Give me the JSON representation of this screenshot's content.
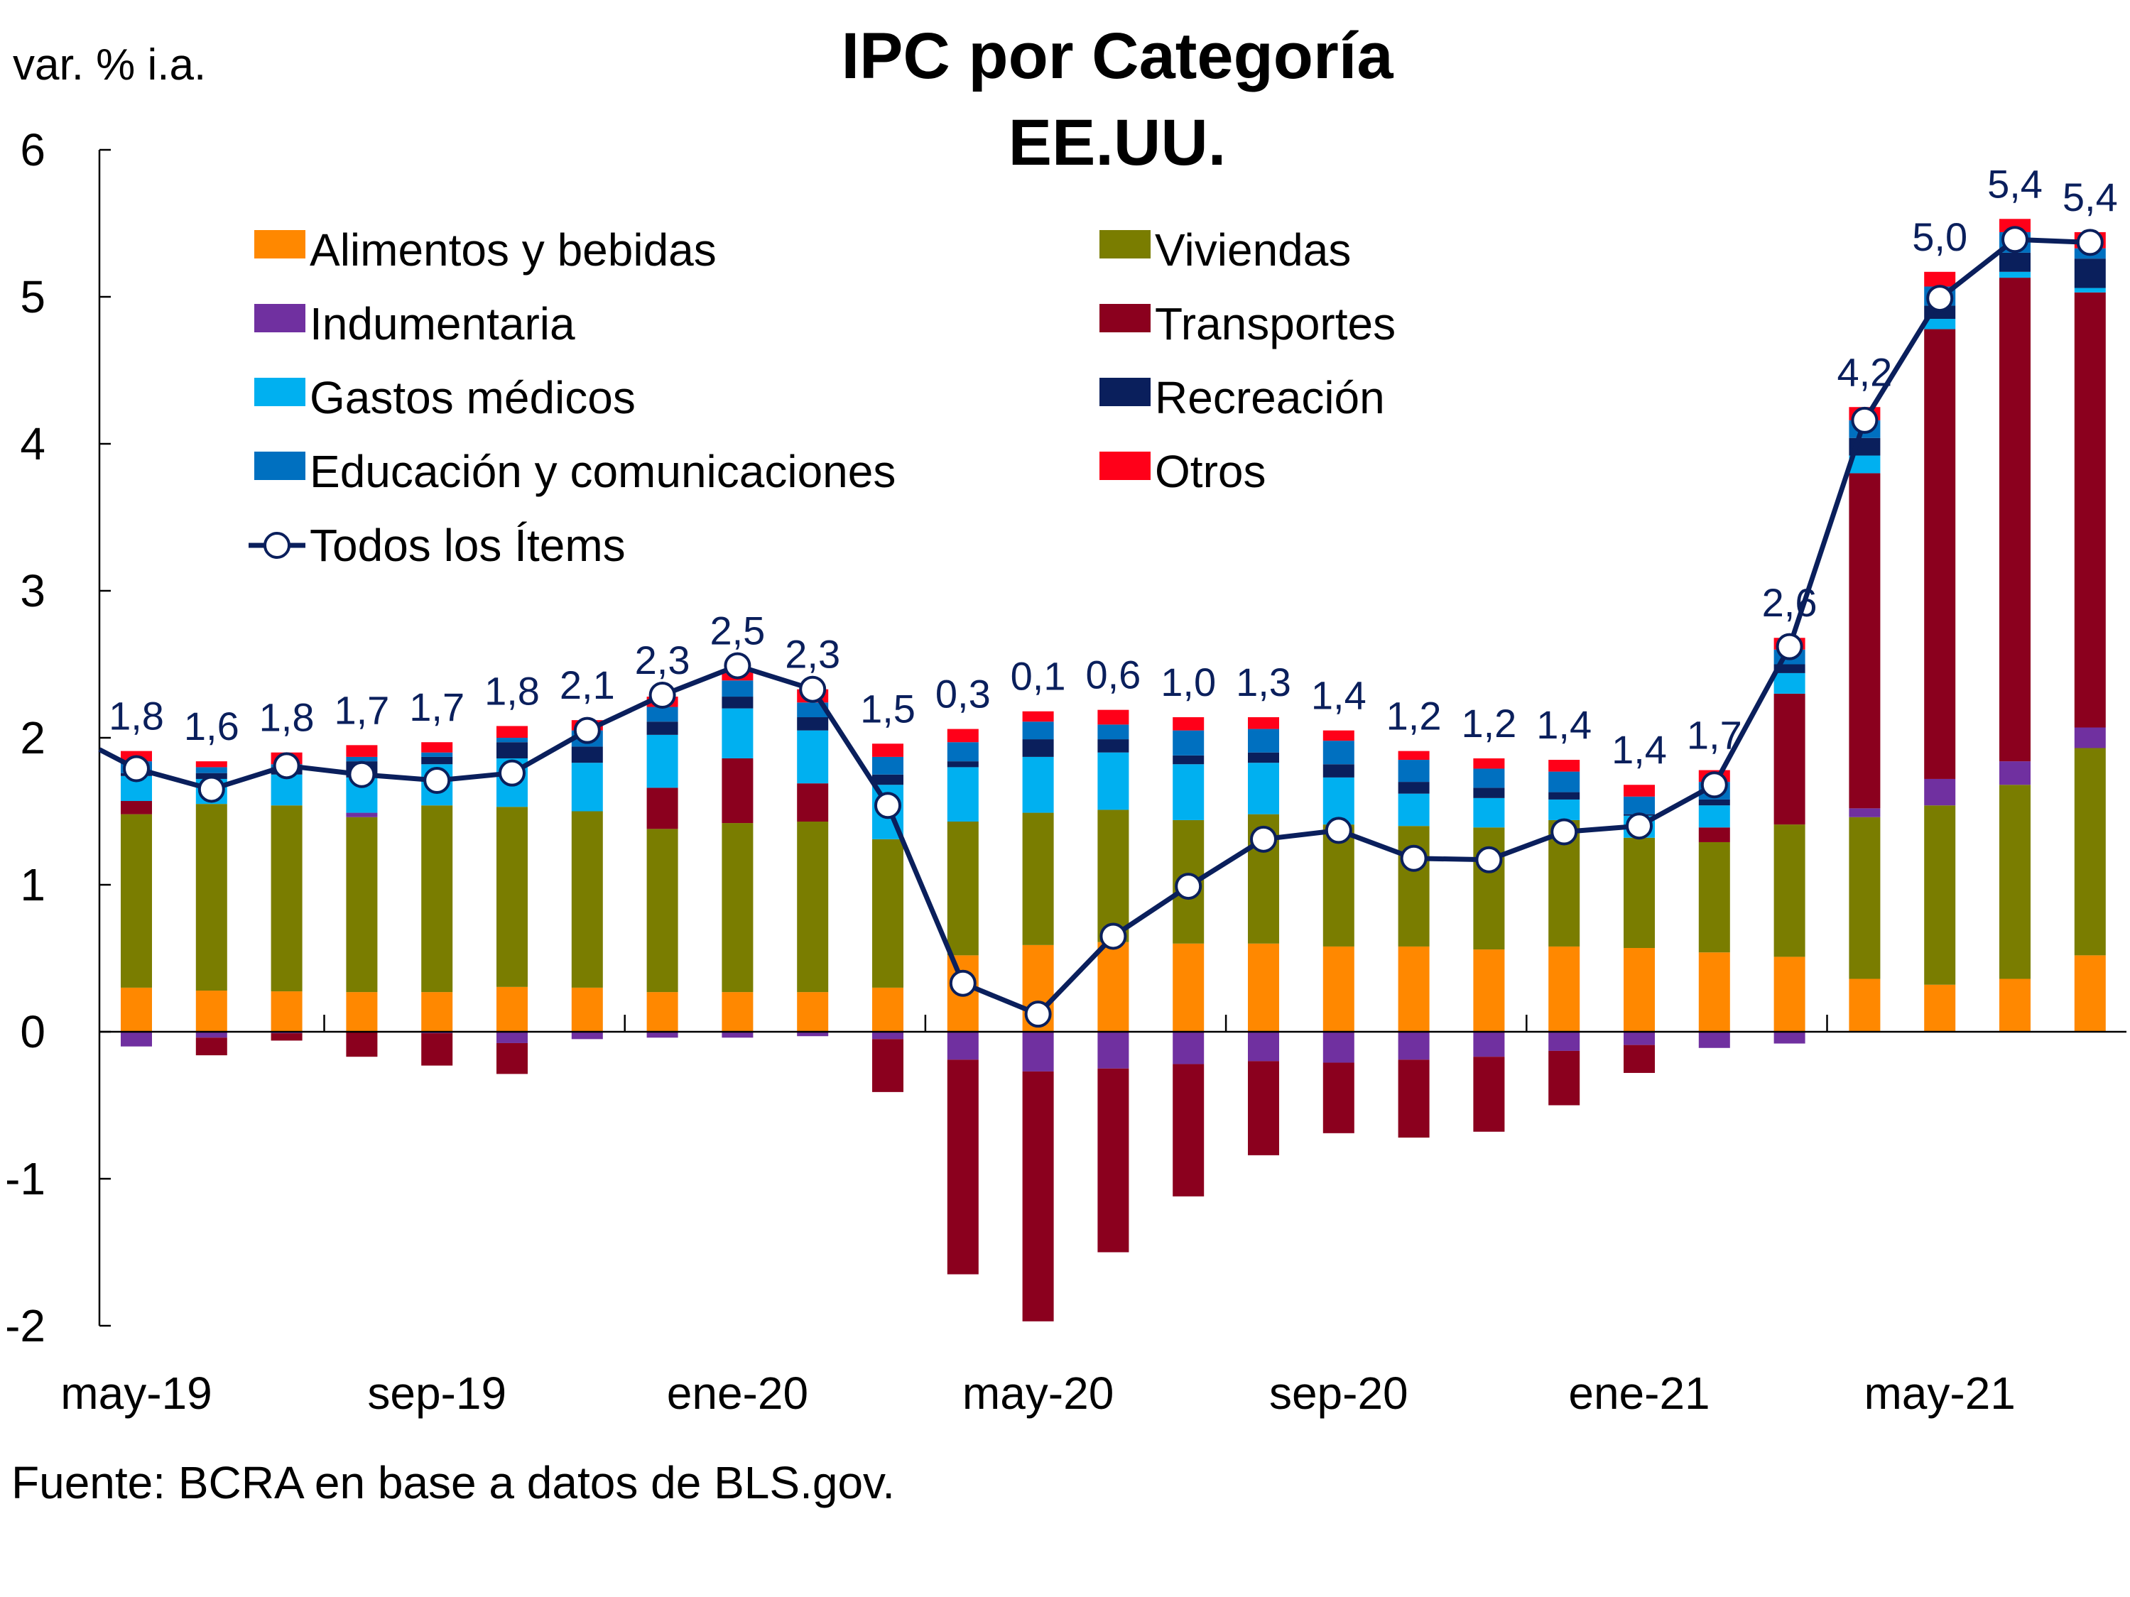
{
  "chart_data": {
    "type": "bar",
    "stacked": true,
    "title": "IPC por Categoría",
    "subtitle": "EE.UU.",
    "ylabel": "var. % i.a.",
    "xlabel": "",
    "ylim": [
      -2,
      6
    ],
    "yticks": [
      6,
      5,
      4,
      3,
      2,
      1,
      0,
      -1,
      -2
    ],
    "ytick_labels": [
      "6",
      "5",
      "4",
      "3",
      "2",
      "1",
      "0",
      "-1",
      "-2"
    ],
    "grid": false,
    "legend_position": "top-left",
    "source": "Fuente: BCRA en base a datos de BLS.gov.",
    "categories": [
      "may-19",
      "jun-19",
      "jul-19",
      "ago-19",
      "sep-19",
      "oct-19",
      "nov-19",
      "dic-19",
      "ene-20",
      "feb-20",
      "mar-20",
      "abr-20",
      "may-20",
      "jun-20",
      "jul-20",
      "ago-20",
      "sep-20",
      "oct-20",
      "nov-20",
      "dic-20",
      "ene-21",
      "feb-21",
      "mar-21",
      "abr-21",
      "may-21",
      "jun-21",
      "jul-21"
    ],
    "xtick_labels": [
      {
        "index": 0,
        "label": "may-19"
      },
      {
        "index": 4,
        "label": "sep-19"
      },
      {
        "index": 8,
        "label": "ene-20"
      },
      {
        "index": 12,
        "label": "may-20"
      },
      {
        "index": 16,
        "label": "sep-20"
      },
      {
        "index": 20,
        "label": "ene-21"
      },
      {
        "index": 24,
        "label": "may-21"
      }
    ],
    "series": [
      {
        "name": "Alimentos y bebidas",
        "key": "alimentos",
        "color": "#ff8800",
        "values": [
          0.3,
          0.28,
          0.275,
          0.27,
          0.27,
          0.305,
          0.3,
          0.27,
          0.27,
          0.27,
          0.3,
          0.52,
          0.59,
          0.61,
          0.6,
          0.6,
          0.58,
          0.58,
          0.56,
          0.58,
          0.57,
          0.54,
          0.51,
          0.36,
          0.32,
          0.36,
          0.52
        ]
      },
      {
        "name": "Viviendas",
        "key": "viviendas",
        "color": "#7a7d00",
        "values": [
          1.18,
          1.27,
          1.265,
          1.19,
          1.27,
          1.225,
          1.2,
          1.11,
          1.15,
          1.16,
          1.01,
          0.91,
          0.9,
          0.9,
          0.84,
          0.88,
          0.83,
          0.82,
          0.83,
          0.86,
          0.75,
          0.75,
          0.9,
          1.1,
          1.22,
          1.32,
          1.41
        ]
      },
      {
        "name": "Indumentaria",
        "key": "indumentaria",
        "color": "#7030a0",
        "values": [
          -0.1,
          -0.04,
          -0.01,
          0.03,
          -0.01,
          -0.077,
          -0.05,
          -0.04,
          -0.04,
          -0.03,
          -0.05,
          -0.19,
          -0.27,
          -0.25,
          -0.22,
          -0.2,
          -0.21,
          -0.19,
          -0.17,
          -0.13,
          -0.09,
          -0.11,
          -0.08,
          0.06,
          0.18,
          0.16,
          0.14
        ]
      },
      {
        "name": "Transportes",
        "key": "transportes",
        "color": "#8b001e",
        "values": [
          0.09,
          -0.12,
          -0.05,
          -0.17,
          -0.22,
          -0.21,
          0.0,
          0.28,
          0.44,
          0.26,
          -0.36,
          -1.46,
          -1.7,
          -1.25,
          -0.9,
          -0.64,
          -0.48,
          -0.53,
          -0.51,
          -0.37,
          -0.19,
          0.1,
          0.89,
          2.28,
          3.06,
          3.29,
          2.96
        ]
      },
      {
        "name": "Gastos médicos",
        "key": "medicos",
        "color": "#00b0f0",
        "values": [
          0.17,
          0.17,
          0.21,
          0.24,
          0.28,
          0.33,
          0.33,
          0.36,
          0.34,
          0.36,
          0.37,
          0.37,
          0.38,
          0.39,
          0.38,
          0.35,
          0.32,
          0.22,
          0.2,
          0.14,
          0.15,
          0.15,
          0.14,
          0.12,
          0.07,
          0.04,
          0.03
        ]
      },
      {
        "name": "Recreación",
        "key": "recreacion",
        "color": "#0a1f5c",
        "values": [
          0.02,
          0.04,
          0.05,
          0.11,
          0.05,
          0.11,
          0.11,
          0.09,
          0.08,
          0.09,
          0.07,
          0.04,
          0.12,
          0.09,
          0.06,
          0.07,
          0.09,
          0.08,
          0.07,
          0.05,
          0.01,
          0.04,
          0.06,
          0.12,
          0.09,
          0.13,
          0.2
        ]
      },
      {
        "name": "Educación y comunicaciones",
        "key": "educacion",
        "color": "#0070c0",
        "values": [
          0.08,
          0.04,
          0.02,
          0.03,
          0.03,
          0.03,
          0.11,
          0.1,
          0.11,
          0.1,
          0.12,
          0.13,
          0.12,
          0.1,
          0.17,
          0.16,
          0.16,
          0.15,
          0.13,
          0.14,
          0.12,
          0.12,
          0.1,
          0.12,
          0.13,
          0.14,
          0.07
        ]
      },
      {
        "name": "Otros",
        "key": "otros",
        "color": "#ff0019",
        "values": [
          0.07,
          0.04,
          0.08,
          0.08,
          0.07,
          0.08,
          0.07,
          0.07,
          0.07,
          0.09,
          0.09,
          0.09,
          0.07,
          0.1,
          0.09,
          0.08,
          0.07,
          0.06,
          0.07,
          0.08,
          0.08,
          0.08,
          0.08,
          0.09,
          0.1,
          0.09,
          0.11
        ]
      }
    ],
    "line": {
      "name": "Todos los Ítems",
      "key": "todos",
      "color": "#0a1f5c",
      "values": [
        1.79,
        1.65,
        1.81,
        1.75,
        1.71,
        1.76,
        2.05,
        2.29,
        2.49,
        2.33,
        1.54,
        0.33,
        0.12,
        0.65,
        0.99,
        1.31,
        1.37,
        1.18,
        1.17,
        1.36,
        1.4,
        1.68,
        2.62,
        4.16,
        4.99,
        5.39,
        5.37
      ],
      "data_labels": [
        "1,8",
        "1,6",
        "1,8",
        "1,7",
        "1,7",
        "1,8",
        "2,1",
        "2,3",
        "2,5",
        "2,3",
        "1,5",
        "0,3",
        "0,1",
        "0,6",
        "1,0",
        "1,3",
        "1,4",
        "1,2",
        "1,2",
        "1,4",
        "1,4",
        "1,7",
        "2,6",
        "4,2",
        "5,0",
        "5,4",
        "5,4"
      ]
    },
    "legend": [
      {
        "label": "Alimentos y bebidas",
        "key": "alimentos",
        "column": 0
      },
      {
        "label": "Viviendas",
        "key": "viviendas",
        "column": 1
      },
      {
        "label": "Indumentaria",
        "key": "indumentaria",
        "column": 0
      },
      {
        "label": "Transportes",
        "key": "transportes",
        "column": 1
      },
      {
        "label": "Gastos médicos",
        "key": "medicos",
        "column": 0
      },
      {
        "label": "Recreación",
        "key": "recreacion",
        "column": 1
      },
      {
        "label": "Educación y comunicaciones",
        "key": "educacion",
        "column": 0
      },
      {
        "label": "Otros",
        "key": "otros",
        "column": 1
      },
      {
        "label": "Todos los Ítems",
        "key": "todos",
        "column": 0
      }
    ]
  }
}
